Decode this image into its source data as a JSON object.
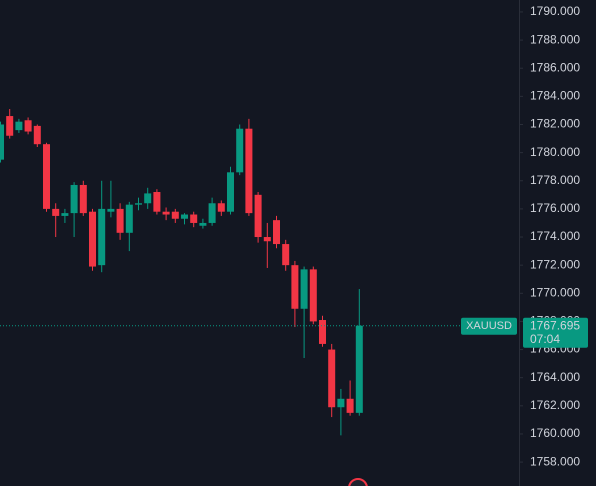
{
  "chart_data": {
    "type": "candlestick",
    "symbol": "XAUUSD",
    "last_price": 1767.695,
    "countdown": "07:04",
    "up_color": "#089981",
    "down_color": "#f23645",
    "ylim": [
      1756.3,
      1790.85
    ],
    "yticks": [
      {
        "value": 1758,
        "label": "1758.000"
      },
      {
        "value": 1760,
        "label": "1760.000"
      },
      {
        "value": 1762,
        "label": "1762.000"
      },
      {
        "value": 1764,
        "label": "1764.000"
      },
      {
        "value": 1766,
        "label": "1766.000"
      },
      {
        "value": 1768,
        "label": "1768.000"
      },
      {
        "value": 1770,
        "label": "1770.000"
      },
      {
        "value": 1772,
        "label": "1772.000"
      },
      {
        "value": 1774,
        "label": "1774.000"
      },
      {
        "value": 1776,
        "label": "1776.000"
      },
      {
        "value": 1778,
        "label": "1778.000"
      },
      {
        "value": 1780,
        "label": "1780.000"
      },
      {
        "value": 1782,
        "label": "1782.000"
      },
      {
        "value": 1784,
        "label": "1784.000"
      },
      {
        "value": 1786,
        "label": "1786.000"
      },
      {
        "value": 1788,
        "label": "1788.000"
      },
      {
        "value": 1790,
        "label": "1790.000"
      }
    ],
    "open": [
      1779.5,
      1782.6,
      1781.6,
      1782.3,
      1781.9,
      1780.6,
      1776.0,
      1775.5,
      1775.7,
      1777.7,
      1775.8,
      1772.0,
      1775.8,
      1776.0,
      1774.3,
      1776.3,
      1776.4,
      1777.2,
      1775.8,
      1775.8,
      1775.3,
      1775.6,
      1774.8,
      1775.0,
      1776.4,
      1775.8,
      1778.6,
      1781.7,
      1777.0,
      1774.0,
      1775.2,
      1773.5,
      1772.0,
      1768.9,
      1771.7,
      1768.1,
      1766.0,
      1761.9,
      1762.5,
      1761.5
    ],
    "high": [
      1782.2,
      1783.1,
      1782.4,
      1782.5,
      1782.0,
      1780.7,
      1776.4,
      1776.0,
      1777.9,
      1778.0,
      1776.0,
      1778.0,
      1778.0,
      1776.4,
      1776.5,
      1776.8,
      1777.5,
      1777.4,
      1776.1,
      1776.0,
      1775.7,
      1775.8,
      1775.3,
      1776.8,
      1776.6,
      1779.0,
      1782.0,
      1782.4,
      1777.2,
      1775.0,
      1775.5,
      1773.8,
      1772.3,
      1771.9,
      1771.9,
      1768.4,
      1766.4,
      1763.2,
      1763.8,
      1770.3
    ],
    "low": [
      1779.3,
      1781.0,
      1781.4,
      1781.3,
      1780.4,
      1775.8,
      1774.0,
      1775.0,
      1774.0,
      1775.5,
      1771.6,
      1771.5,
      1775.4,
      1773.8,
      1773.0,
      1775.9,
      1776.0,
      1775.6,
      1775.2,
      1775.0,
      1774.9,
      1774.7,
      1774.6,
      1774.8,
      1775.5,
      1775.6,
      1778.4,
      1775.5,
      1773.6,
      1771.8,
      1773.2,
      1771.6,
      1767.6,
      1765.4,
      1767.8,
      1766.2,
      1761.2,
      1759.9,
      1761.3,
      1761.3
    ],
    "close": [
      1782.0,
      1781.2,
      1782.2,
      1781.5,
      1780.6,
      1776.0,
      1775.5,
      1775.7,
      1777.7,
      1775.7,
      1771.9,
      1776.0,
      1776.0,
      1774.3,
      1776.3,
      1776.4,
      1777.1,
      1775.8,
      1775.6,
      1775.3,
      1775.6,
      1775.0,
      1775.0,
      1776.4,
      1775.8,
      1778.6,
      1781.7,
      1775.7,
      1774.0,
      1773.7,
      1773.5,
      1772.0,
      1768.9,
      1771.7,
      1768.0,
      1766.4,
      1761.9,
      1762.5,
      1761.5,
      1767.695
    ]
  }
}
